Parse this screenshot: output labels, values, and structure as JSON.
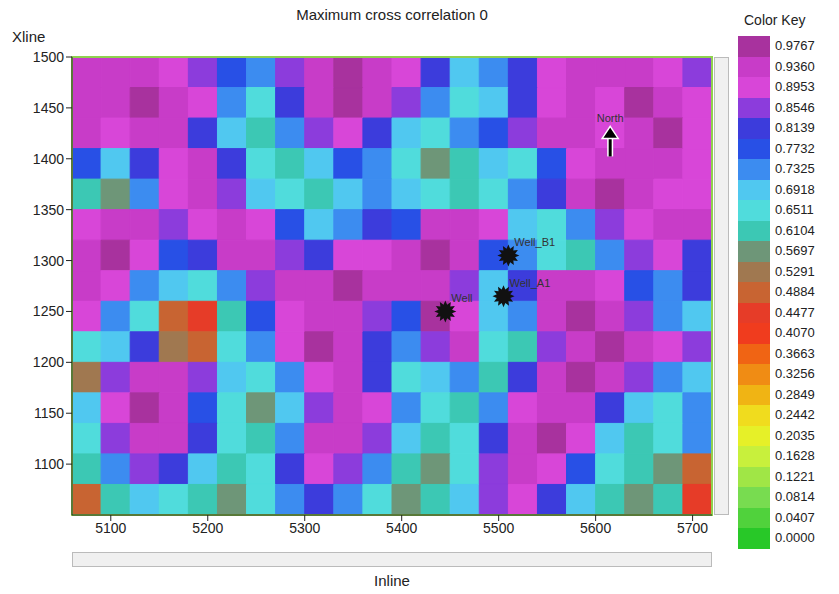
{
  "chart_data": {
    "type": "heatmap",
    "title": "Maximum cross correlation 0",
    "x_label": "Inline",
    "y_label": "Xline",
    "xlim": [
      5060,
      5720
    ],
    "ylim": [
      1050,
      1500
    ],
    "xticks": [
      5100,
      5200,
      5300,
      5400,
      5500,
      5600,
      5700
    ],
    "yticks": [
      1100,
      1150,
      1200,
      1250,
      1300,
      1350,
      1400,
      1450,
      1500
    ],
    "cells": {
      "x_edges": [
        5060,
        5090,
        5120,
        5150,
        5180,
        5210,
        5240,
        5270,
        5300,
        5330,
        5360,
        5390,
        5420,
        5450,
        5480,
        5510,
        5540,
        5570,
        5600,
        5630,
        5660,
        5690,
        5720
      ],
      "y_edges": [
        1500,
        1470,
        1440,
        1410,
        1380,
        1350,
        1320,
        1290,
        1260,
        1230,
        1200,
        1170,
        1140,
        1110,
        1080,
        1050
      ],
      "values": [
        [
          0.95,
          0.95,
          0.93,
          0.9,
          0.85,
          0.78,
          0.72,
          0.85,
          0.94,
          0.96,
          0.95,
          0.9,
          0.82,
          0.7,
          0.75,
          0.82,
          0.9,
          0.95,
          0.93,
          0.95,
          0.9,
          0.86
        ],
        [
          0.95,
          0.93,
          0.96,
          0.95,
          0.88,
          0.72,
          0.66,
          0.8,
          0.92,
          0.97,
          0.95,
          0.86,
          0.74,
          0.65,
          0.7,
          0.8,
          0.88,
          0.93,
          0.9,
          0.96,
          0.94,
          0.88
        ],
        [
          0.92,
          0.88,
          0.95,
          0.93,
          0.82,
          0.68,
          0.62,
          0.74,
          0.85,
          0.9,
          0.82,
          0.7,
          0.64,
          0.72,
          0.78,
          0.86,
          0.93,
          0.95,
          0.9,
          0.93,
          0.96,
          0.9
        ],
        [
          0.78,
          0.7,
          0.82,
          0.9,
          0.93,
          0.8,
          0.66,
          0.6,
          0.7,
          0.78,
          0.72,
          0.66,
          0.58,
          0.62,
          0.7,
          0.65,
          0.78,
          0.9,
          0.94,
          0.95,
          0.93,
          0.88
        ],
        [
          0.62,
          0.55,
          0.72,
          0.88,
          0.95,
          0.86,
          0.7,
          0.64,
          0.6,
          0.68,
          0.74,
          0.7,
          0.64,
          0.6,
          0.66,
          0.72,
          0.82,
          0.93,
          0.96,
          0.92,
          0.88,
          0.9
        ],
        [
          0.88,
          0.93,
          0.95,
          0.84,
          0.9,
          0.95,
          0.9,
          0.78,
          0.68,
          0.74,
          0.82,
          0.78,
          0.92,
          0.95,
          0.88,
          0.7,
          0.64,
          0.72,
          0.84,
          0.9,
          0.95,
          0.93
        ],
        [
          0.93,
          0.96,
          0.9,
          0.78,
          0.82,
          0.93,
          0.95,
          0.86,
          0.8,
          0.88,
          0.9,
          0.94,
          0.96,
          0.93,
          0.78,
          0.74,
          0.66,
          0.62,
          0.72,
          0.86,
          0.9,
          0.82
        ],
        [
          0.95,
          0.88,
          0.74,
          0.7,
          0.64,
          0.72,
          0.86,
          0.92,
          0.95,
          0.96,
          0.93,
          0.95,
          0.92,
          0.86,
          0.7,
          0.8,
          0.92,
          0.95,
          0.9,
          0.78,
          0.72,
          0.8
        ],
        [
          0.9,
          0.72,
          0.66,
          0.5,
          0.45,
          0.6,
          0.78,
          0.88,
          0.93,
          0.95,
          0.86,
          0.78,
          0.96,
          0.9,
          0.68,
          0.74,
          0.94,
          0.96,
          0.93,
          0.84,
          0.74,
          0.68
        ],
        [
          0.64,
          0.7,
          0.82,
          0.52,
          0.48,
          0.66,
          0.74,
          0.9,
          0.96,
          0.93,
          0.8,
          0.72,
          0.86,
          0.93,
          0.64,
          0.6,
          0.86,
          0.95,
          0.96,
          0.93,
          0.9,
          0.86
        ],
        [
          0.52,
          0.86,
          0.94,
          0.95,
          0.84,
          0.7,
          0.64,
          0.72,
          0.9,
          0.95,
          0.8,
          0.66,
          0.7,
          0.74,
          0.62,
          0.8,
          0.93,
          0.96,
          0.92,
          0.86,
          0.74,
          0.7
        ],
        [
          0.7,
          0.9,
          0.96,
          0.93,
          0.78,
          0.64,
          0.58,
          0.7,
          0.86,
          0.94,
          0.9,
          0.72,
          0.66,
          0.6,
          0.72,
          0.9,
          0.95,
          0.93,
          0.82,
          0.7,
          0.64,
          0.72
        ],
        [
          0.66,
          0.84,
          0.95,
          0.92,
          0.8,
          0.66,
          0.62,
          0.74,
          0.92,
          0.95,
          0.86,
          0.68,
          0.6,
          0.66,
          0.82,
          0.93,
          0.96,
          0.88,
          0.7,
          0.62,
          0.66,
          0.74
        ],
        [
          0.6,
          0.74,
          0.86,
          0.8,
          0.7,
          0.6,
          0.66,
          0.8,
          0.9,
          0.84,
          0.72,
          0.62,
          0.56,
          0.64,
          0.86,
          0.94,
          0.9,
          0.76,
          0.64,
          0.6,
          0.56,
          0.5
        ],
        [
          0.48,
          0.62,
          0.7,
          0.66,
          0.6,
          0.56,
          0.64,
          0.72,
          0.8,
          0.74,
          0.66,
          0.58,
          0.62,
          0.7,
          0.84,
          0.9,
          0.82,
          0.7,
          0.62,
          0.58,
          0.6,
          0.46
        ]
      ]
    },
    "colorbar": {
      "title": "Color Key",
      "ticks": [
        0.9767,
        {
          "value": 0.936,
          "label": "0.9360"
        },
        0.8953,
        0.8546,
        0.8139,
        0.7732,
        0.7325,
        0.6918,
        0.6511,
        0.6104,
        0.5697,
        0.5291,
        0.4884,
        0.4477,
        {
          "value": 0.407,
          "label": "0.4070"
        },
        0.3663,
        0.3256,
        0.2849,
        0.2442,
        0.2035,
        0.1628,
        0.1221,
        0.0814,
        0.0407,
        {
          "value": 0,
          "label": "0.0000"
        }
      ],
      "colors": [
        "#a8329e",
        "#c83cc8",
        "#d846d8",
        "#8c3cdc",
        "#3c3cdc",
        "#2850e6",
        "#3c8cf0",
        "#50c8f0",
        "#50dcdc",
        "#3cc8b4",
        "#6e9678",
        "#a07850",
        "#c86432",
        "#e63c28",
        "#f03c1e",
        "#f06414",
        "#f08c14",
        "#f0b414",
        "#f0dc1e",
        "#e6f028",
        "#c8f03c",
        "#a0e646",
        "#78dc50",
        "#50d23c",
        "#28c828"
      ]
    },
    "wells": [
      {
        "label": "Well_B1",
        "x": 5510,
        "y": 1305
      },
      {
        "label": "Well_A1",
        "x": 5505,
        "y": 1265
      },
      {
        "label": "Well",
        "x": 5445,
        "y": 1250
      }
    ],
    "annotations": [
      {
        "text": "North",
        "x": 5615,
        "y": 1420
      }
    ]
  }
}
